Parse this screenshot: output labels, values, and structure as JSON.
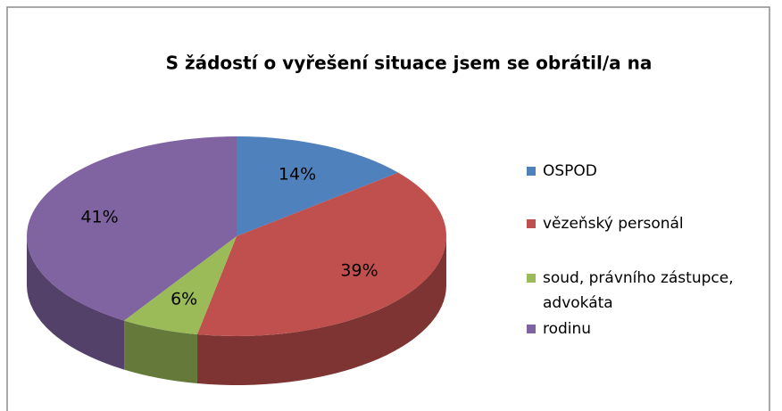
{
  "chart_data": {
    "type": "pie",
    "title": "S žádostí o vyřešení situace jsem se obrátil/a na",
    "categories": [
      "OSPOD",
      "vězeňský personál",
      "soud, právního zástupce, advokáta",
      "rodinu"
    ],
    "values": [
      14,
      39,
      6,
      41
    ],
    "value_labels": [
      "14%",
      "39%",
      "6%",
      "41%"
    ],
    "colors": [
      "#4f81bd",
      "#c0504d",
      "#9bbb59",
      "#8064a2"
    ]
  }
}
